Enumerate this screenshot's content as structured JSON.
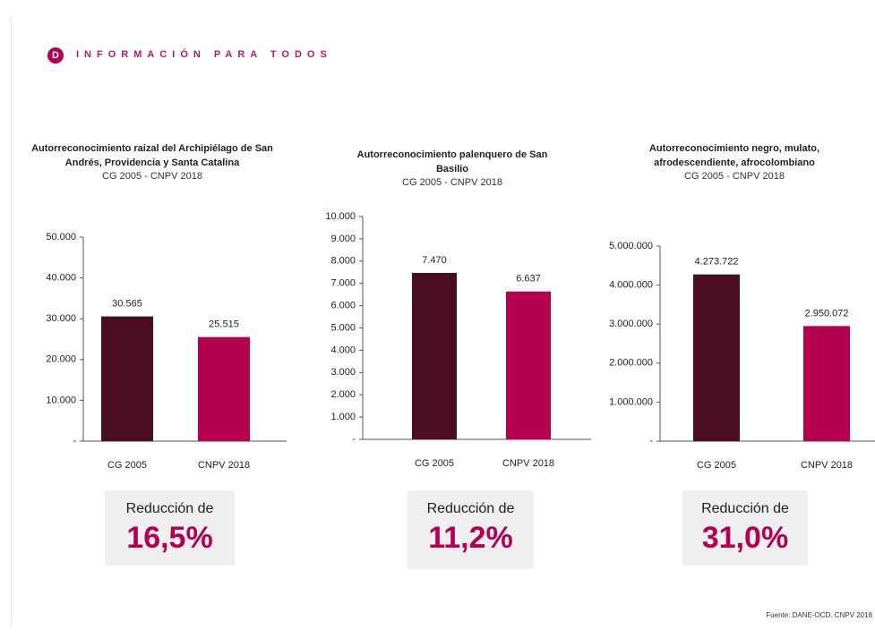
{
  "header": {
    "title": "INFORMACIÓN PARA TODOS",
    "logo": "D"
  },
  "source": "Fuente: DANE-OCD. CNPV 2018",
  "chart_data": [
    {
      "type": "bar",
      "title": "Autorreconocimiento raizal del Archipiélago de San Andrés, Providencia y Santa Catalina",
      "subtitle": "CG 2005 - CNPV 2018",
      "categories": [
        "CG 2005",
        "CNPV 2018"
      ],
      "values": [
        30565,
        25515
      ],
      "value_labels": [
        "30.565",
        "25.515"
      ],
      "colors": [
        "#4a0d22",
        "#b5004f"
      ],
      "ylim": [
        0,
        50000
      ],
      "yticks": [
        {
          "value": 0,
          "label": "-"
        },
        {
          "value": 10000,
          "label": "10.000"
        },
        {
          "value": 20000,
          "label": "20.000"
        },
        {
          "value": 30000,
          "label": "30.000"
        },
        {
          "value": 40000,
          "label": "40.000"
        },
        {
          "value": 50000,
          "label": "50.000"
        }
      ],
      "annotation": {
        "label": "Reducción de",
        "value": "16,5%"
      }
    },
    {
      "type": "bar",
      "title": "Autorreconocimiento palenquero de San Basilio",
      "subtitle": "CG 2005 - CNPV 2018",
      "categories": [
        "CG 2005",
        "CNPV 2018"
      ],
      "values": [
        7470,
        6637
      ],
      "value_labels": [
        "7.470",
        "6.637"
      ],
      "colors": [
        "#4a0d22",
        "#b5004f"
      ],
      "ylim": [
        0,
        10000
      ],
      "yticks": [
        {
          "value": 0,
          "label": "-"
        },
        {
          "value": 1000,
          "label": "1.000"
        },
        {
          "value": 2000,
          "label": "2.000"
        },
        {
          "value": 3000,
          "label": "3.000"
        },
        {
          "value": 4000,
          "label": "4.000"
        },
        {
          "value": 5000,
          "label": "5.000"
        },
        {
          "value": 6000,
          "label": "6.000"
        },
        {
          "value": 7000,
          "label": "7.000"
        },
        {
          "value": 8000,
          "label": "8.000"
        },
        {
          "value": 9000,
          "label": "9.000"
        },
        {
          "value": 10000,
          "label": "10.000"
        }
      ],
      "annotation": {
        "label": "Reducción de",
        "value": "11,2%"
      }
    },
    {
      "type": "bar",
      "title": "Autorreconocimiento negro, mulato, afrodescendiente, afrocolombiano",
      "subtitle": "CG 2005 - CNPV 2018",
      "categories": [
        "CG 2005",
        "CNPV 2018"
      ],
      "values": [
        4273722,
        2950072
      ],
      "value_labels": [
        "4.273.722",
        "2.950.072"
      ],
      "colors": [
        "#4a0d22",
        "#b5004f"
      ],
      "ylim": [
        0,
        5000000
      ],
      "yticks": [
        {
          "value": 0,
          "label": "-"
        },
        {
          "value": 1000000,
          "label": "1.000.000"
        },
        {
          "value": 2000000,
          "label": "2.000.000"
        },
        {
          "value": 3000000,
          "label": "3.000.000"
        },
        {
          "value": 4000000,
          "label": "4.000.000"
        },
        {
          "value": 5000000,
          "label": "5.000.000"
        }
      ],
      "annotation": {
        "label": "Reducción de",
        "value": "31,0%"
      }
    }
  ]
}
